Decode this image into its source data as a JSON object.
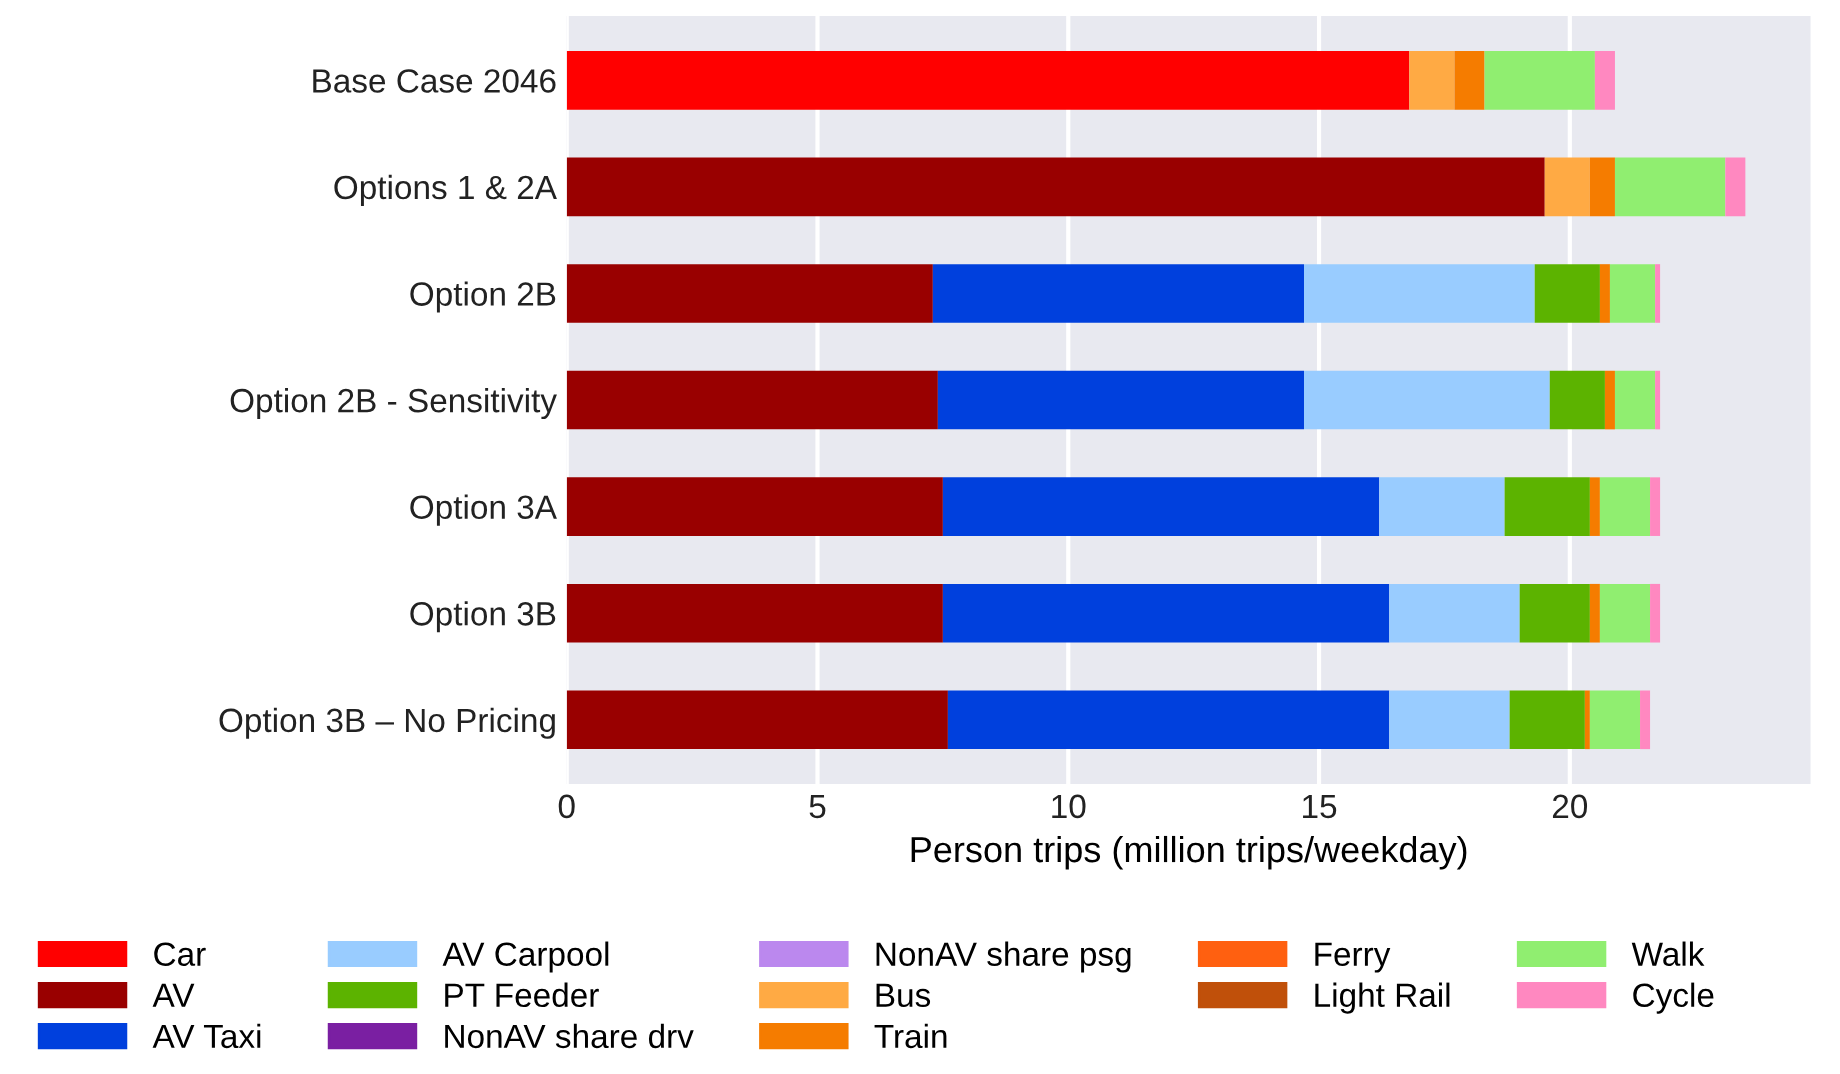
{
  "chart_data": {
    "type": "bar",
    "orientation": "horizontal",
    "stacked": true,
    "xlabel": "Person trips (million trips/weekday)",
    "categories": [
      "Base Case 2046",
      "Options 1 & 2A",
      "Option 2B",
      "Option 2B - Sensitivity",
      "Option 3A",
      "Option 3B",
      "Option 3B – No Pricing"
    ],
    "series": [
      {
        "name": "Car",
        "color": "#ff0000",
        "values": [
          16.8,
          0,
          0,
          0,
          0,
          0,
          0
        ]
      },
      {
        "name": "AV",
        "color": "#990000",
        "values": [
          0,
          19.5,
          7.3,
          7.4,
          7.5,
          7.5,
          7.6
        ]
      },
      {
        "name": "AV Taxi",
        "color": "#0040dd",
        "values": [
          0,
          0,
          7.4,
          7.3,
          8.7,
          8.9,
          8.8
        ]
      },
      {
        "name": "AV Carpool",
        "color": "#99ccff",
        "values": [
          0,
          0,
          4.6,
          4.9,
          2.5,
          2.6,
          2.4
        ]
      },
      {
        "name": "PT Feeder",
        "color": "#5cb300",
        "values": [
          0,
          0,
          1.3,
          1.1,
          1.7,
          1.4,
          1.5
        ]
      },
      {
        "name": "NonAV share drv",
        "color": "#7a1fa2",
        "values": [
          0,
          0,
          0,
          0,
          0,
          0,
          0
        ]
      },
      {
        "name": "NonAV share psg",
        "color": "#bb88ee",
        "values": [
          0,
          0,
          0,
          0,
          0,
          0,
          0
        ]
      },
      {
        "name": "Bus",
        "color": "#ffaa44",
        "values": [
          0.9,
          0.9,
          0,
          0,
          0,
          0,
          0
        ]
      },
      {
        "name": "Train",
        "color": "#f57c00",
        "values": [
          0.6,
          0.5,
          0.2,
          0.2,
          0.2,
          0.2,
          0.1
        ]
      },
      {
        "name": "Ferry",
        "color": "#ff6010",
        "values": [
          0,
          0,
          0,
          0,
          0,
          0,
          0
        ]
      },
      {
        "name": "Light Rail",
        "color": "#c0500a",
        "values": [
          0,
          0,
          0,
          0,
          0,
          0,
          0
        ]
      },
      {
        "name": "Walk",
        "color": "#90ee70",
        "values": [
          2.2,
          2.2,
          0.9,
          0.8,
          1.0,
          1.0,
          1.0
        ]
      },
      {
        "name": "Cycle",
        "color": "#ff88c0",
        "values": [
          0.4,
          0.4,
          0.1,
          0.1,
          0.2,
          0.2,
          0.2
        ]
      }
    ],
    "xlim": [
      0,
      24.8
    ],
    "xticks": [
      0,
      5,
      10,
      15,
      20
    ],
    "grid": "x",
    "legend": "bottom"
  }
}
